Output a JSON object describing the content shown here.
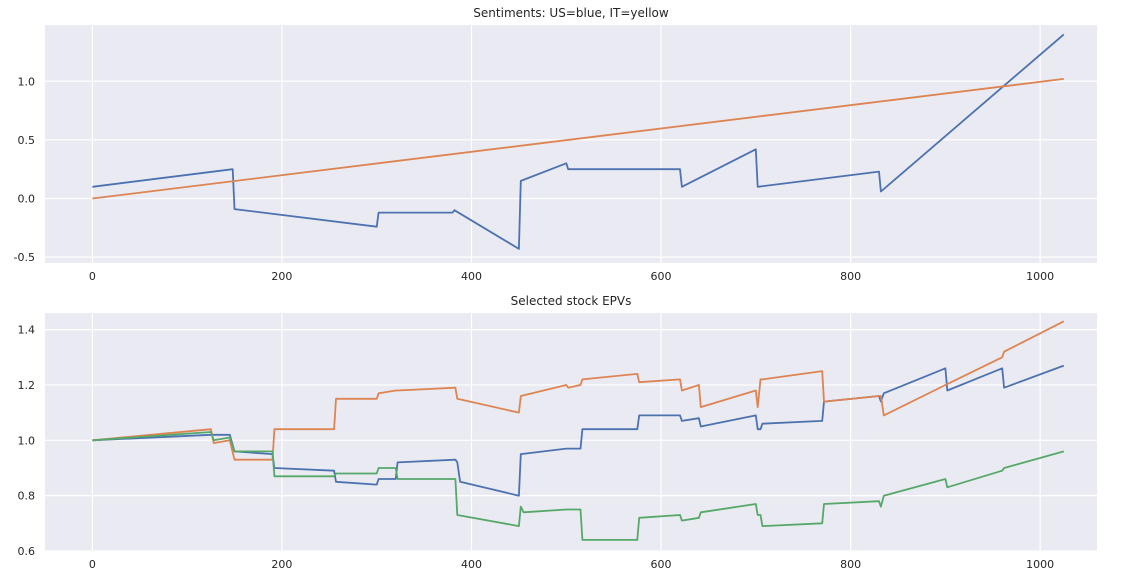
{
  "chart_data": [
    {
      "type": "line",
      "title": "Sentiments: US=blue, IT=yellow",
      "xlabel": "",
      "ylabel": "",
      "xlim": [
        -50,
        1060
      ],
      "ylim": [
        -0.55,
        1.48
      ],
      "xticks": [
        0,
        200,
        400,
        600,
        800,
        1000
      ],
      "xtick_labels": [
        "0",
        "200",
        "400",
        "600",
        "800",
        "1000"
      ],
      "yticks": [
        -0.5,
        0.0,
        0.5,
        1.0
      ],
      "ytick_labels": [
        "-0.5",
        "0.0",
        "0.5",
        "1.0"
      ],
      "grid": true,
      "colors": [
        "#4c72b0",
        "#dd8452"
      ],
      "series": [
        {
          "x": [
            0,
            148,
            150,
            300,
            302,
            380,
            382,
            450,
            452,
            500,
            502,
            620,
            622,
            700,
            702,
            830,
            832,
            1025
          ],
          "values": [
            0.1,
            0.25,
            -0.09,
            -0.24,
            -0.12,
            -0.12,
            -0.1,
            -0.43,
            0.15,
            0.3,
            0.25,
            0.25,
            0.1,
            0.42,
            0.1,
            0.23,
            0.06,
            1.4
          ]
        },
        {
          "x": [
            0,
            1025
          ],
          "values": [
            0.0,
            1.02
          ]
        }
      ]
    },
    {
      "type": "line",
      "title": "Selected stock EPVs",
      "xlabel": "",
      "ylabel": "",
      "xlim": [
        -50,
        1060
      ],
      "ylim": [
        0.6,
        1.46
      ],
      "xticks": [
        0,
        200,
        400,
        600,
        800,
        1000
      ],
      "xtick_labels": [
        "0",
        "200",
        "400",
        "600",
        "800",
        "1000"
      ],
      "yticks": [
        0.6,
        0.8,
        1.0,
        1.2,
        1.4
      ],
      "ytick_labels": [
        "0.6",
        "0.8",
        "1.0",
        "1.2",
        "1.4"
      ],
      "grid": true,
      "colors": [
        "#4c72b0",
        "#dd8452",
        "#55a868"
      ],
      "series": [
        {
          "x": [
            0,
            125,
            128,
            145,
            150,
            190,
            192,
            255,
            257,
            300,
            302,
            320,
            322,
            383,
            385,
            388,
            450,
            452,
            500,
            502,
            515,
            517,
            575,
            577,
            620,
            622,
            640,
            642,
            700,
            702,
            705,
            707,
            770,
            772,
            830,
            832,
            835,
            900,
            902,
            960,
            962,
            1025
          ],
          "values": [
            1.0,
            1.02,
            1.02,
            1.02,
            0.96,
            0.95,
            0.9,
            0.89,
            0.85,
            0.84,
            0.86,
            0.86,
            0.92,
            0.93,
            0.92,
            0.85,
            0.8,
            0.95,
            0.97,
            0.97,
            0.97,
            1.04,
            1.04,
            1.09,
            1.09,
            1.07,
            1.08,
            1.05,
            1.09,
            1.04,
            1.04,
            1.06,
            1.07,
            1.14,
            1.16,
            1.14,
            1.17,
            1.26,
            1.18,
            1.26,
            1.19,
            1.27
          ]
        },
        {
          "x": [
            0,
            125,
            128,
            145,
            150,
            190,
            192,
            255,
            257,
            300,
            302,
            320,
            322,
            383,
            385,
            450,
            452,
            500,
            502,
            515,
            517,
            575,
            577,
            620,
            622,
            640,
            642,
            700,
            702,
            705,
            707,
            770,
            772,
            830,
            832,
            835,
            900,
            960,
            962,
            1025
          ],
          "values": [
            1.0,
            1.04,
            0.99,
            1.0,
            0.93,
            0.93,
            1.04,
            1.04,
            1.15,
            1.15,
            1.17,
            1.18,
            1.18,
            1.19,
            1.15,
            1.1,
            1.16,
            1.2,
            1.19,
            1.2,
            1.22,
            1.24,
            1.21,
            1.22,
            1.18,
            1.2,
            1.12,
            1.18,
            1.12,
            1.22,
            1.22,
            1.25,
            1.14,
            1.16,
            1.16,
            1.09,
            1.2,
            1.3,
            1.32,
            1.43
          ]
        },
        {
          "x": [
            0,
            125,
            128,
            145,
            150,
            190,
            192,
            255,
            257,
            300,
            302,
            320,
            322,
            383,
            385,
            450,
            452,
            455,
            500,
            502,
            515,
            517,
            575,
            577,
            620,
            622,
            640,
            642,
            700,
            702,
            705,
            707,
            770,
            772,
            830,
            832,
            835,
            900,
            902,
            960,
            962,
            1025
          ],
          "values": [
            1.0,
            1.03,
            1.0,
            1.01,
            0.96,
            0.96,
            0.87,
            0.87,
            0.88,
            0.88,
            0.9,
            0.9,
            0.86,
            0.86,
            0.73,
            0.69,
            0.76,
            0.74,
            0.75,
            0.75,
            0.75,
            0.64,
            0.64,
            0.72,
            0.73,
            0.71,
            0.72,
            0.74,
            0.77,
            0.73,
            0.73,
            0.69,
            0.7,
            0.77,
            0.78,
            0.76,
            0.8,
            0.86,
            0.83,
            0.89,
            0.9,
            0.96
          ]
        }
      ]
    }
  ]
}
